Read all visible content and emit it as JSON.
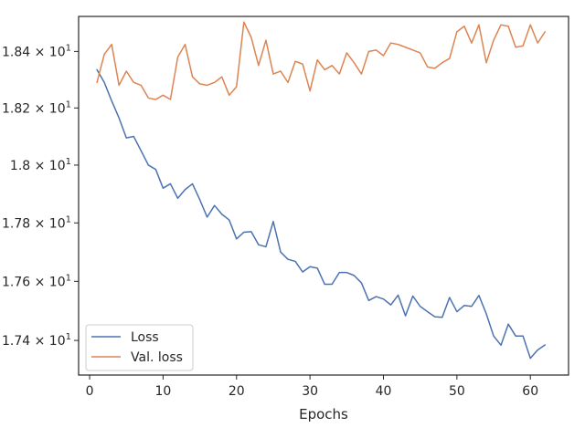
{
  "chart_data": {
    "type": "line",
    "title": "",
    "xlabel": "Epochs",
    "ylabel": "",
    "xlim": [
      -1.5,
      65.2
    ],
    "ylim": [
      17.284,
      18.525
    ],
    "yscale": "log",
    "grid": false,
    "legend_position": "lower-left",
    "x_ticks": [
      0,
      10,
      20,
      30,
      40,
      50,
      60
    ],
    "x_tick_labels": [
      "0",
      "10",
      "20",
      "30",
      "40",
      "50",
      "60"
    ],
    "y_ticks": [
      17.4,
      17.6,
      17.8,
      18.0,
      18.2,
      18.4
    ],
    "y_tick_labels": [
      {
        "base": "1.74",
        "exp": "1"
      },
      {
        "base": "1.76",
        "exp": "1"
      },
      {
        "base": "1.78",
        "exp": "1"
      },
      {
        "base": "1.8",
        "exp": "1"
      },
      {
        "base": "1.82",
        "exp": "1"
      },
      {
        "base": "1.84",
        "exp": "1"
      }
    ],
    "times_sign": "×",
    "base_ten": "10",
    "x": [
      1,
      2,
      3,
      4,
      5,
      6,
      7,
      8,
      9,
      10,
      11,
      12,
      13,
      14,
      15,
      16,
      17,
      18,
      19,
      20,
      21,
      22,
      23,
      24,
      25,
      26,
      27,
      28,
      29,
      30,
      31,
      32,
      33,
      34,
      35,
      36,
      37,
      38,
      39,
      40,
      41,
      42,
      43,
      44,
      45,
      46,
      47,
      48,
      49,
      50,
      51,
      52,
      53,
      54,
      55,
      56,
      57,
      58,
      59,
      60,
      61,
      62
    ],
    "series": [
      {
        "name": "Loss",
        "color": "#4c72b0",
        "values": [
          18.335,
          18.29,
          18.225,
          18.165,
          18.095,
          18.1,
          18.05,
          18.0,
          17.985,
          17.92,
          17.935,
          17.885,
          17.915,
          17.935,
          17.88,
          17.82,
          17.86,
          17.83,
          17.81,
          17.745,
          17.768,
          17.77,
          17.725,
          17.718,
          17.805,
          17.7,
          17.675,
          17.668,
          17.632,
          17.65,
          17.645,
          17.59,
          17.59,
          17.63,
          17.63,
          17.62,
          17.595,
          17.535,
          17.548,
          17.54,
          17.52,
          17.553,
          17.483,
          17.55,
          17.515,
          17.497,
          17.48,
          17.478,
          17.545,
          17.497,
          17.518,
          17.515,
          17.552,
          17.49,
          17.415,
          17.384,
          17.455,
          17.415,
          17.415,
          17.34,
          17.368,
          17.385
        ]
      },
      {
        "name": "Val. loss",
        "color": "#dd8452",
        "values": [
          18.29,
          18.39,
          18.425,
          18.28,
          18.33,
          18.29,
          18.28,
          18.235,
          18.23,
          18.245,
          18.23,
          18.38,
          18.425,
          18.31,
          18.285,
          18.28,
          18.29,
          18.31,
          18.245,
          18.275,
          18.505,
          18.45,
          18.35,
          18.44,
          18.32,
          18.33,
          18.29,
          18.365,
          18.355,
          18.26,
          18.37,
          18.335,
          18.35,
          18.32,
          18.395,
          18.36,
          18.32,
          18.4,
          18.405,
          18.385,
          18.43,
          18.425,
          18.415,
          18.405,
          18.395,
          18.345,
          18.34,
          18.36,
          18.375,
          18.47,
          18.49,
          18.43,
          18.495,
          18.36,
          18.44,
          18.495,
          18.49,
          18.415,
          18.42,
          18.495,
          18.43,
          18.47
        ]
      }
    ]
  }
}
